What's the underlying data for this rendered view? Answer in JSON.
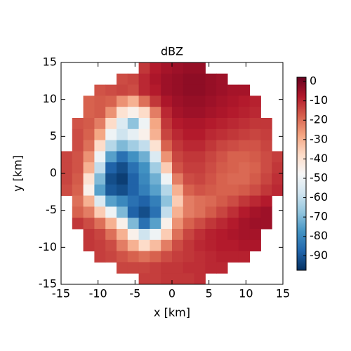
{
  "chart_data": {
    "type": "heatmap",
    "title": "dBZ",
    "xlabel": "x [km]",
    "ylabel": "y [km]",
    "xlim": [
      -15,
      15
    ],
    "ylim": [
      -15,
      15
    ],
    "xticks": [
      -15,
      -10,
      -5,
      0,
      5,
      10,
      15
    ],
    "yticks": [
      -15,
      -10,
      -5,
      0,
      5,
      10,
      15
    ],
    "x": [
      -14.25,
      -12.75,
      -11.25,
      -9.75,
      -8.25,
      -6.75,
      -5.25,
      -3.75,
      -2.25,
      -0.75,
      0.75,
      2.25,
      3.75,
      5.25,
      6.75,
      8.25,
      9.75,
      11.25,
      12.75,
      14.25
    ],
    "y": [
      14.25,
      12.75,
      11.25,
      9.75,
      8.25,
      6.75,
      5.25,
      3.75,
      2.25,
      0.75,
      -0.75,
      -2.25,
      -3.75,
      -5.25,
      -6.75,
      -8.25,
      -9.75,
      -11.25,
      -12.75,
      -14.25
    ],
    "zlim": [
      -97.5,
      2.2
    ],
    "zticks": [
      0,
      -10,
      -20,
      -30,
      -40,
      -50,
      -60,
      -70,
      -80,
      -90
    ],
    "colormap": [
      "#053061",
      "#2166ac",
      "#4393c3",
      "#92c5de",
      "#d1e5f0",
      "#f7f7f7",
      "#fddbc7",
      "#f4a582",
      "#d6604d",
      "#b2182b",
      "#67001f"
    ],
    "z": [
      [
        null,
        null,
        null,
        null,
        null,
        null,
        null,
        -12,
        -8,
        -6,
        -5,
        -4,
        -4,
        null,
        null,
        null,
        null,
        null,
        null,
        null
      ],
      [
        null,
        null,
        null,
        null,
        null,
        -15,
        -14,
        -10,
        -7,
        -5,
        -4,
        -3,
        -3,
        -4,
        -5,
        null,
        null,
        null,
        null,
        null
      ],
      [
        null,
        null,
        null,
        -16,
        -15,
        -14,
        -15,
        -10,
        -8,
        -5,
        -4,
        -3,
        -3,
        -4,
        -5,
        -6,
        -6,
        null,
        null,
        null
      ],
      [
        null,
        null,
        -18,
        -17,
        -18,
        -25,
        -30,
        -20,
        -12,
        -7,
        -5,
        -4,
        -4,
        -5,
        -6,
        -7,
        -8,
        -9,
        null,
        null
      ],
      [
        null,
        null,
        -18,
        -17,
        -25,
        -40,
        -45,
        -38,
        -22,
        -10,
        -6,
        -5,
        -5,
        -6,
        -7,
        -8,
        -9,
        -10,
        null,
        null
      ],
      [
        null,
        -16,
        -17,
        -22,
        -38,
        -55,
        -68,
        -50,
        -28,
        -12,
        -8,
        -7,
        -7,
        -8,
        -9,
        -10,
        -11,
        -12,
        -12,
        null
      ],
      [
        null,
        -15,
        -18,
        -28,
        -50,
        -58,
        -52,
        -45,
        -30,
        -14,
        -10,
        -8,
        -8,
        -10,
        -11,
        -12,
        -13,
        -14,
        -13,
        null
      ],
      [
        null,
        -15,
        -20,
        -38,
        -62,
        -70,
        -65,
        -60,
        -40,
        -18,
        -12,
        -10,
        -10,
        -12,
        -14,
        -15,
        -16,
        -16,
        -14,
        null
      ],
      [
        -14,
        -16,
        -25,
        -50,
        -75,
        -85,
        -78,
        -72,
        -55,
        -25,
        -14,
        -12,
        -12,
        -14,
        -16,
        -18,
        -18,
        -17,
        -15,
        -13
      ],
      [
        -14,
        -16,
        -30,
        -60,
        -88,
        -92,
        -85,
        -78,
        -65,
        -35,
        -16,
        -13,
        -13,
        -15,
        -17,
        -18,
        -19,
        -18,
        -15,
        -12
      ],
      [
        -14,
        -17,
        -40,
        -70,
        -92,
        -95,
        -88,
        -80,
        -72,
        -50,
        -22,
        -15,
        -14,
        -16,
        -18,
        -19,
        -19,
        -17,
        -14,
        -11
      ],
      [
        -15,
        -18,
        -45,
        -75,
        -90,
        -92,
        -88,
        -82,
        -75,
        -62,
        -30,
        -18,
        -16,
        -17,
        -18,
        -18,
        -17,
        -15,
        -12,
        -10
      ],
      [
        null,
        -20,
        -30,
        -55,
        -75,
        -80,
        -85,
        -88,
        -82,
        -68,
        -35,
        -22,
        -20,
        -19,
        -17,
        -15,
        -12,
        -10,
        -8,
        null
      ],
      [
        null,
        -18,
        -22,
        -35,
        -50,
        -70,
        -88,
        -92,
        -85,
        -60,
        -30,
        -22,
        -20,
        -17,
        -14,
        -11,
        -8,
        -6,
        -5,
        null
      ],
      [
        null,
        -12,
        -15,
        -20,
        -30,
        -45,
        -70,
        -85,
        -75,
        -45,
        -25,
        -18,
        -15,
        -12,
        -10,
        -8,
        -6,
        -5,
        -5,
        null
      ],
      [
        null,
        null,
        -12,
        -14,
        -20,
        -30,
        -45,
        -58,
        -50,
        -35,
        -20,
        -14,
        -11,
        -9,
        -8,
        -7,
        -6,
        -6,
        null,
        null
      ],
      [
        null,
        null,
        -12,
        -13,
        -15,
        -22,
        -30,
        -38,
        -32,
        -22,
        -15,
        -12,
        -10,
        -9,
        -8,
        -8,
        -7,
        -7,
        null,
        null
      ],
      [
        null,
        null,
        null,
        -13,
        -14,
        -16,
        -18,
        -20,
        -18,
        -15,
        -13,
        -12,
        -11,
        -10,
        -9,
        -9,
        -9,
        null,
        null,
        null
      ],
      [
        null,
        null,
        null,
        null,
        null,
        -14,
        -14,
        -14,
        -13,
        -12,
        -12,
        -11,
        -11,
        -10,
        -10,
        null,
        null,
        null,
        null,
        null
      ],
      [
        null,
        null,
        null,
        null,
        null,
        null,
        null,
        -13,
        -13,
        -12,
        -12,
        -12,
        -11,
        null,
        null,
        null,
        null,
        null,
        null,
        null
      ]
    ]
  }
}
